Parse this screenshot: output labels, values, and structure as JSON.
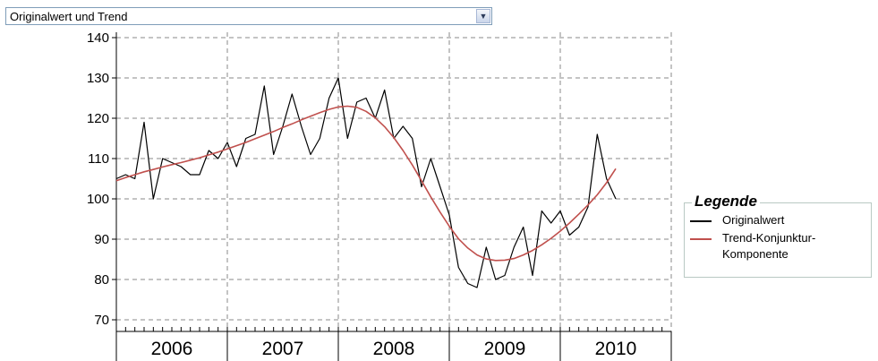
{
  "dropdown": {
    "selected": "Originalwert und Trend",
    "arrow_icon": "chevron-down-icon"
  },
  "legend": {
    "title": "Legende",
    "items": [
      {
        "label": "Originalwert",
        "color": "#000000"
      },
      {
        "label": "Trend-Konjunktur-",
        "label2": "Komponente",
        "color": "#c0504d"
      }
    ]
  },
  "chart_data": {
    "type": "line",
    "title": "",
    "xlabel": "",
    "ylabel": "",
    "ylim": [
      70,
      140
    ],
    "y_ticks": [
      70,
      80,
      90,
      100,
      110,
      120,
      130,
      140
    ],
    "x_tick_labels": [
      "2006",
      "2007",
      "2008",
      "2009",
      "2010"
    ],
    "grid": true,
    "legend_position": "right",
    "x_start": "2005-07",
    "series": [
      {
        "name": "Originalwert",
        "color": "#000000",
        "values": [
          105,
          106,
          105,
          119,
          100,
          110,
          109,
          108,
          106,
          106,
          112,
          110,
          114,
          108,
          115,
          116,
          128,
          111,
          118,
          126,
          118,
          111,
          115,
          125,
          130,
          115,
          124,
          125,
          120,
          127,
          115,
          118,
          115,
          103,
          110,
          103,
          96,
          83,
          79,
          78,
          88,
          80,
          81,
          88,
          93,
          81,
          97,
          94,
          97,
          91,
          93,
          98,
          116,
          105,
          100
        ]
      },
      {
        "name": "Trend-Konjunktur-Komponente",
        "color": "#c0504d",
        "values": [
          104.5,
          105.3,
          106.0,
          106.7,
          107.3,
          107.9,
          108.5,
          109.0,
          109.6,
          110.2,
          110.9,
          111.6,
          112.4,
          113.2,
          114.0,
          114.9,
          115.8,
          116.7,
          117.7,
          118.6,
          119.6,
          120.5,
          121.4,
          122.2,
          122.8,
          123.0,
          122.7,
          121.7,
          120.1,
          117.9,
          115.2,
          112.0,
          108.4,
          104.5,
          100.5,
          96.7,
          93.2,
          90.1,
          87.8,
          86.1,
          85.1,
          84.7,
          84.8,
          85.2,
          86.1,
          87.2,
          88.6,
          90.2,
          92.0,
          94.0,
          96.2,
          98.5,
          101.0,
          104.0,
          107.5
        ]
      }
    ]
  }
}
